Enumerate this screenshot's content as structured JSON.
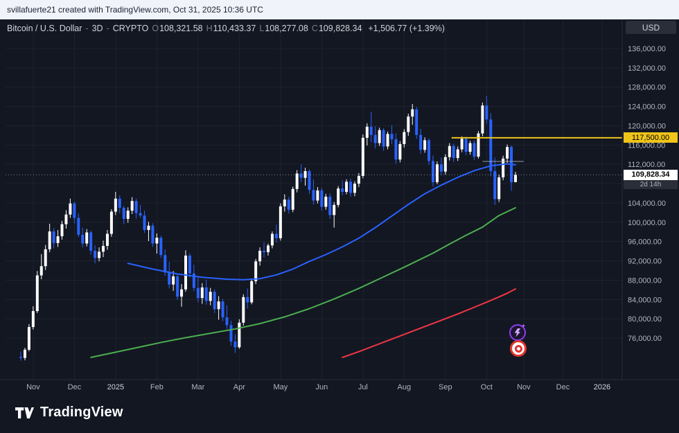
{
  "attribution": {
    "text": "svillafuerte21 created with TradingView.com, Oct 31, 2025 10:36 UTC"
  },
  "legend": {
    "symbol": "Bitcoin / U.S. Dollar",
    "separator": "-",
    "interval": "3D",
    "exchange": "CRYPTO",
    "ohlc": [
      {
        "k": "O",
        "v": "108,321.58"
      },
      {
        "k": "H",
        "v": "110,433.37"
      },
      {
        "k": "L",
        "v": "108,277.08"
      },
      {
        "k": "C",
        "v": "109,828.34"
      }
    ],
    "change": "+1,506.77 (+1.39%)"
  },
  "price_axis": {
    "currency_button": "USD",
    "level_label": "117,500.00",
    "current_price_label": "109,828.34",
    "countdown": "2d 14h",
    "ticks": [
      {
        "v": 136000,
        "label": "136,000.00"
      },
      {
        "v": 132000,
        "label": "132,000.00"
      },
      {
        "v": 128000,
        "label": "128,000.00"
      },
      {
        "v": 124000,
        "label": "124,000.00"
      },
      {
        "v": 120000,
        "label": "120,000.00"
      },
      {
        "v": 116000,
        "label": "116,000.00"
      },
      {
        "v": 112000,
        "label": "112,000.00"
      },
      {
        "v": 108000,
        "label": ""
      },
      {
        "v": 104000,
        "label": "104,000.00"
      },
      {
        "v": 100000,
        "label": "100,000.00"
      },
      {
        "v": 96000,
        "label": "96,000.00"
      },
      {
        "v": 92000,
        "label": "92,000.00"
      },
      {
        "v": 88000,
        "label": "88,000.00"
      },
      {
        "v": 84000,
        "label": "84,000.00"
      },
      {
        "v": 80000,
        "label": "80,000.00"
      },
      {
        "v": 76000,
        "label": "76,000.00"
      }
    ]
  },
  "time_axis": {
    "labels": [
      {
        "text": "Nov",
        "index": 3,
        "major": false
      },
      {
        "text": "Dec",
        "index": 13,
        "major": false
      },
      {
        "text": "2025",
        "index": 23,
        "major": true
      },
      {
        "text": "Feb",
        "index": 33,
        "major": false
      },
      {
        "text": "Mar",
        "index": 43,
        "major": false
      },
      {
        "text": "Apr",
        "index": 53,
        "major": false
      },
      {
        "text": "May",
        "index": 63,
        "major": false
      },
      {
        "text": "Jun",
        "index": 73,
        "major": false
      },
      {
        "text": "Jul",
        "index": 83,
        "major": false
      },
      {
        "text": "Aug",
        "index": 93,
        "major": false
      },
      {
        "text": "Sep",
        "index": 103,
        "major": false
      },
      {
        "text": "Oct",
        "index": 113,
        "major": false
      },
      {
        "text": "Nov",
        "index": 122,
        "major": false
      },
      {
        "text": "Dec",
        "index": 131.5,
        "major": false
      },
      {
        "text": "2026",
        "index": 141,
        "major": true
      }
    ]
  },
  "footer": {
    "brand": "TradingView"
  },
  "colors": {
    "background": "#131722",
    "up": "#ffffff",
    "down": "#2962ff",
    "ma_fast": "#2962ff",
    "ma_mid": "#4caf50",
    "ma_slow": "#f23645",
    "level": "#f0c419",
    "grid": "#1e222d",
    "axis_border": "#2a2e39",
    "axis_text": "#b2b5be",
    "text": "#d1d4dc",
    "price_line": "#d5d6dc"
  },
  "chart_data": {
    "type": "candlestick",
    "title": "Bitcoin / U.S. Dollar - 3D - CRYPTO",
    "interval": "3D",
    "ylim": [
      68000,
      138000
    ],
    "grid": true,
    "current_price": 109828.34,
    "candles": [
      [
        72100,
        73200,
        71300,
        71900
      ],
      [
        71900,
        74000,
        71400,
        73600
      ],
      [
        73600,
        78900,
        73300,
        78300
      ],
      [
        78300,
        82600,
        77800,
        81600
      ],
      [
        81600,
        89900,
        81200,
        89000
      ],
      [
        89000,
        93400,
        88200,
        90900
      ],
      [
        90900,
        95300,
        90100,
        94400
      ],
      [
        94400,
        99700,
        93800,
        98100
      ],
      [
        98100,
        98800,
        94600,
        95700
      ],
      [
        95700,
        98400,
        94900,
        97100
      ],
      [
        97100,
        100300,
        96400,
        99600
      ],
      [
        99600,
        102500,
        98700,
        101600
      ],
      [
        101600,
        104900,
        100900,
        103900
      ],
      [
        103900,
        104300,
        99800,
        100900
      ],
      [
        100900,
        101800,
        96900,
        97400
      ],
      [
        97400,
        98900,
        94800,
        95600
      ],
      [
        95600,
        98600,
        95000,
        97900
      ],
      [
        97900,
        98300,
        93300,
        94100
      ],
      [
        94100,
        95200,
        91500,
        92600
      ],
      [
        92600,
        94800,
        91900,
        93900
      ],
      [
        93900,
        96200,
        92800,
        95100
      ],
      [
        95100,
        98400,
        94300,
        97600
      ],
      [
        97600,
        102700,
        97000,
        102200
      ],
      [
        102200,
        106300,
        101500,
        104900
      ],
      [
        104900,
        105600,
        101900,
        103000
      ],
      [
        103000,
        103400,
        99600,
        100700
      ],
      [
        100700,
        103100,
        99900,
        102400
      ],
      [
        102400,
        105200,
        101700,
        104400
      ],
      [
        104400,
        104900,
        100800,
        101900
      ],
      [
        101900,
        103600,
        100900,
        101400
      ],
      [
        101400,
        102400,
        97800,
        98400
      ],
      [
        98400,
        100100,
        96100,
        99300
      ],
      [
        99300,
        99800,
        94900,
        95600
      ],
      [
        95600,
        97700,
        93500,
        96800
      ],
      [
        96800,
        97200,
        92600,
        93200
      ],
      [
        93200,
        94400,
        88900,
        89600
      ],
      [
        89600,
        91800,
        86300,
        87100
      ],
      [
        87100,
        89900,
        85800,
        88800
      ],
      [
        88800,
        89300,
        83900,
        84600
      ],
      [
        84600,
        87200,
        82500,
        86100
      ],
      [
        86100,
        94200,
        85600,
        93100
      ],
      [
        93100,
        93600,
        88500,
        89400
      ],
      [
        89400,
        91200,
        85700,
        86400
      ],
      [
        86400,
        88600,
        83400,
        84300
      ],
      [
        84300,
        87400,
        83100,
        86500
      ],
      [
        86500,
        88100,
        82900,
        83700
      ],
      [
        83700,
        86400,
        82800,
        85600
      ],
      [
        85600,
        86100,
        81200,
        82000
      ],
      [
        82000,
        84700,
        79800,
        83600
      ],
      [
        83600,
        84100,
        79500,
        80300
      ],
      [
        80300,
        82800,
        77900,
        78700
      ],
      [
        78700,
        79600,
        74400,
        75300
      ],
      [
        75300,
        76800,
        72900,
        74100
      ],
      [
        74100,
        79900,
        73800,
        79200
      ],
      [
        79200,
        85100,
        78600,
        84500
      ],
      [
        84500,
        86300,
        82100,
        83400
      ],
      [
        83400,
        88300,
        83000,
        87800
      ],
      [
        87800,
        92400,
        87200,
        91900
      ],
      [
        91900,
        94800,
        91000,
        94100
      ],
      [
        94100,
        95900,
        92700,
        93800
      ],
      [
        93800,
        95600,
        93100,
        95200
      ],
      [
        95200,
        98100,
        94600,
        97600
      ],
      [
        97600,
        99500,
        95800,
        96700
      ],
      [
        96700,
        103900,
        96200,
        103300
      ],
      [
        103300,
        105800,
        102200,
        104700
      ],
      [
        104700,
        105300,
        101800,
        102600
      ],
      [
        102600,
        107400,
        102100,
        106900
      ],
      [
        106900,
        110800,
        106200,
        110100
      ],
      [
        110100,
        112000,
        108300,
        109200
      ],
      [
        109200,
        111300,
        107600,
        110600
      ],
      [
        110600,
        111000,
        105900,
        106700
      ],
      [
        106700,
        108900,
        103700,
        104500
      ],
      [
        104500,
        107300,
        103900,
        106600
      ],
      [
        106600,
        107100,
        102400,
        103200
      ],
      [
        103200,
        105900,
        102600,
        105300
      ],
      [
        105300,
        106000,
        100700,
        101500
      ],
      [
        101500,
        104200,
        98900,
        103600
      ],
      [
        103600,
        107500,
        103100,
        107000
      ],
      [
        107000,
        108700,
        105600,
        106300
      ],
      [
        106300,
        108900,
        105800,
        108400
      ],
      [
        108400,
        109000,
        105300,
        106100
      ],
      [
        106100,
        108500,
        105400,
        108000
      ],
      [
        108000,
        110200,
        107300,
        109600
      ],
      [
        109600,
        118200,
        109100,
        117500
      ],
      [
        117500,
        120500,
        115900,
        119800
      ],
      [
        119800,
        122900,
        116600,
        118100
      ],
      [
        118100,
        119900,
        115300,
        116400
      ],
      [
        116400,
        119600,
        115800,
        119100
      ],
      [
        119100,
        119500,
        114800,
        115700
      ],
      [
        115700,
        118800,
        115100,
        118300
      ],
      [
        118300,
        120100,
        116200,
        117200
      ],
      [
        117200,
        118400,
        112100,
        113000
      ],
      [
        113000,
        116800,
        112400,
        116200
      ],
      [
        116200,
        119300,
        115500,
        118700
      ],
      [
        118700,
        122500,
        117900,
        121900
      ],
      [
        121900,
        124500,
        120200,
        123400
      ],
      [
        123400,
        123900,
        117300,
        118100
      ],
      [
        118100,
        119400,
        114200,
        115000
      ],
      [
        115000,
        117600,
        114400,
        117000
      ],
      [
        117000,
        117400,
        111900,
        112700
      ],
      [
        112700,
        113800,
        107400,
        108300
      ],
      [
        108300,
        112600,
        107900,
        112000
      ],
      [
        112000,
        113400,
        109800,
        110500
      ],
      [
        110500,
        114100,
        109900,
        113500
      ],
      [
        113500,
        116400,
        112800,
        115800
      ],
      [
        115800,
        116300,
        112500,
        113300
      ],
      [
        113300,
        115700,
        112700,
        115100
      ],
      [
        115100,
        117800,
        114500,
        117300
      ],
      [
        117300,
        117700,
        113900,
        114600
      ],
      [
        114600,
        116900,
        114000,
        116400
      ],
      [
        116400,
        117000,
        112900,
        113600
      ],
      [
        113600,
        118900,
        113200,
        118400
      ],
      [
        118400,
        124800,
        117800,
        124200
      ],
      [
        124200,
        126200,
        120400,
        121300
      ],
      [
        121300,
        122600,
        109500,
        110600
      ],
      [
        110600,
        113400,
        103600,
        104800
      ],
      [
        104800,
        109900,
        104200,
        109300
      ],
      [
        109300,
        113800,
        108700,
        113200
      ],
      [
        113200,
        116100,
        112300,
        115600
      ],
      [
        115600,
        115900,
        106500,
        108300
      ],
      [
        108321.58,
        110433.37,
        108277.08,
        109828.34
      ]
    ],
    "ma": {
      "fast": [
        [
          26,
          91500
        ],
        [
          32,
          90300
        ],
        [
          38,
          89300
        ],
        [
          44,
          88600
        ],
        [
          50,
          88200
        ],
        [
          54,
          88100
        ],
        [
          58,
          88300
        ],
        [
          62,
          89100
        ],
        [
          66,
          90300
        ],
        [
          70,
          91900
        ],
        [
          74,
          93300
        ],
        [
          78,
          94900
        ],
        [
          82,
          96700
        ],
        [
          86,
          98900
        ],
        [
          90,
          101300
        ],
        [
          94,
          103700
        ],
        [
          98,
          105900
        ],
        [
          102,
          107700
        ],
        [
          106,
          109300
        ],
        [
          110,
          110700
        ],
        [
          114,
          111700
        ],
        [
          118,
          112100
        ],
        [
          120,
          111900
        ]
      ],
      "mid": [
        [
          17,
          72000
        ],
        [
          22,
          72900
        ],
        [
          28,
          74000
        ],
        [
          34,
          75100
        ],
        [
          40,
          76100
        ],
        [
          46,
          77000
        ],
        [
          52,
          77900
        ],
        [
          58,
          79000
        ],
        [
          64,
          80400
        ],
        [
          70,
          82100
        ],
        [
          76,
          84100
        ],
        [
          82,
          86300
        ],
        [
          88,
          88700
        ],
        [
          94,
          91100
        ],
        [
          100,
          93600
        ],
        [
          104,
          95500
        ],
        [
          108,
          97300
        ],
        [
          112,
          99000
        ],
        [
          116,
          101400
        ],
        [
          120,
          103000
        ]
      ],
      "slow": [
        [
          78,
          72000
        ],
        [
          82,
          73200
        ],
        [
          86,
          74500
        ],
        [
          90,
          75800
        ],
        [
          94,
          77100
        ],
        [
          98,
          78400
        ],
        [
          102,
          79700
        ],
        [
          106,
          81000
        ],
        [
          110,
          82400
        ],
        [
          114,
          83800
        ],
        [
          118,
          85300
        ],
        [
          120,
          86200
        ]
      ]
    },
    "drawings": {
      "level_line": {
        "price": 117500,
        "from_index": 104.5,
        "label": "117,500.00"
      },
      "segment": {
        "price": 112600,
        "from_index": 112,
        "to_index": 122
      }
    }
  }
}
